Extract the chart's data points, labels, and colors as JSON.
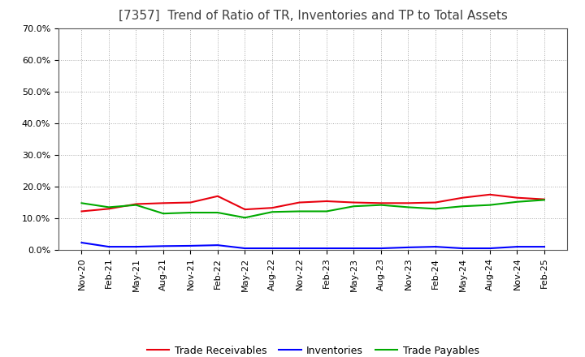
{
  "title": "[7357]  Trend of Ratio of TR, Inventories and TP to Total Assets",
  "x_labels": [
    "Nov-20",
    "Feb-21",
    "May-21",
    "Aug-21",
    "Nov-21",
    "Feb-22",
    "May-22",
    "Aug-22",
    "Nov-22",
    "Feb-23",
    "May-23",
    "Aug-23",
    "Nov-23",
    "Feb-24",
    "May-24",
    "Aug-24",
    "Nov-24",
    "Feb-25"
  ],
  "trade_receivables": [
    0.122,
    0.13,
    0.145,
    0.148,
    0.15,
    0.17,
    0.128,
    0.133,
    0.15,
    0.154,
    0.15,
    0.148,
    0.148,
    0.15,
    0.165,
    0.175,
    0.165,
    0.16
  ],
  "inventories": [
    0.023,
    0.01,
    0.01,
    0.012,
    0.013,
    0.015,
    0.005,
    0.005,
    0.005,
    0.005,
    0.005,
    0.005,
    0.008,
    0.01,
    0.005,
    0.005,
    0.01,
    0.01
  ],
  "trade_payables": [
    0.148,
    0.135,
    0.142,
    0.115,
    0.118,
    0.118,
    0.102,
    0.12,
    0.122,
    0.122,
    0.138,
    0.142,
    0.135,
    0.13,
    0.138,
    0.142,
    0.152,
    0.158
  ],
  "tr_color": "#e8000d",
  "inv_color": "#0000ff",
  "tp_color": "#00aa00",
  "tr_label": "Trade Receivables",
  "inv_label": "Inventories",
  "tp_label": "Trade Payables",
  "ylim": [
    0.0,
    0.7
  ],
  "yticks": [
    0.0,
    0.1,
    0.2,
    0.3,
    0.4,
    0.5,
    0.6,
    0.7
  ],
  "background_color": "#ffffff",
  "grid_color": "#aaaaaa",
  "line_width": 1.5,
  "title_color": "#404040",
  "title_fontsize": 11,
  "tick_fontsize": 8,
  "legend_fontsize": 9
}
